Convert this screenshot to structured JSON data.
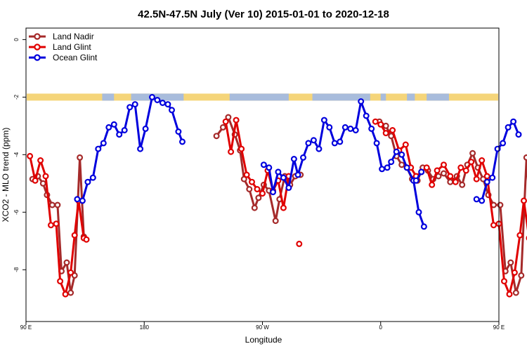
{
  "chart_data": {
    "type": "line",
    "title": "42.5N-47.5N July (Ver 10)   2015-01-01 to 2020-12-18",
    "xlabel": "Longitude",
    "ylabel": "XCO2 - MLO trend (ppm)",
    "x_axis": {
      "range": [
        90,
        450
      ],
      "ticks": [
        {
          "value": 90,
          "label": "90 E"
        },
        {
          "value": 180,
          "label": "180"
        },
        {
          "value": 270,
          "label": "90 W"
        },
        {
          "value": 360,
          "label": "0"
        },
        {
          "value": 450,
          "label": "90 E"
        },
        {
          "value": 540,
          "label": "180"
        }
      ]
    },
    "y_axis": {
      "range": [
        -9.8,
        0.4
      ],
      "ticks": [
        {
          "value": 0,
          "label": "0"
        },
        {
          "value": -2,
          "label": "-2"
        },
        {
          "value": -4,
          "label": "-4"
        },
        {
          "value": -6,
          "label": "-6"
        },
        {
          "value": -8,
          "label": "-8"
        }
      ]
    },
    "grid": false,
    "legend_position": "top-left",
    "land_mask_band": {
      "y_value": -2,
      "land_color": "#f5d57a",
      "ocean_color": "#a8bcdc"
    },
    "series": [
      {
        "name": "Land Nadir",
        "color": "#a52a2a",
        "segments": [
          [
            [
              95,
              -4.85
            ],
            [
              99,
              -4.75
            ],
            [
              103,
              -5.0
            ],
            [
              106,
              -5.4
            ],
            [
              110,
              -5.75
            ],
            [
              114,
              -5.75
            ],
            [
              117,
              -8.05
            ],
            [
              121,
              -7.75
            ],
            [
              124,
              -8.8
            ],
            [
              127,
              -8.2
            ],
            [
              131,
              -4.1
            ],
            [
              134,
              -6.85
            ]
          ],
          [
            [
              235,
              -3.35
            ],
            [
              240,
              -3.05
            ],
            [
              244,
              -2.7
            ],
            [
              249,
              -3.3
            ],
            [
              253,
              -3.85
            ],
            [
              256,
              -4.85
            ],
            [
              260,
              -5.2
            ],
            [
              264,
              -5.85
            ],
            [
              267,
              -5.5
            ],
            [
              271,
              -5.05
            ],
            [
              275,
              -5.25
            ],
            [
              280,
              -6.3
            ],
            [
              283,
              -5.55
            ],
            [
              287,
              -4.75
            ],
            [
              291,
              -5.05
            ],
            [
              295,
              -4.75
            ],
            [
              299,
              -4.7
            ]
          ],
          [
            [
              359,
              -2.85
            ],
            [
              364,
              -3.0
            ],
            [
              368,
              -3.35
            ],
            [
              372,
              -4.05
            ],
            [
              376,
              -4.35
            ],
            [
              380,
              -4.45
            ],
            [
              384,
              -4.85
            ],
            [
              388,
              -4.9
            ],
            [
              392,
              -4.45
            ],
            [
              396,
              -4.55
            ],
            [
              400,
              -4.85
            ],
            [
              404,
              -4.75
            ],
            [
              408,
              -4.65
            ],
            [
              413,
              -4.95
            ],
            [
              418,
              -4.75
            ],
            [
              422,
              -5.05
            ],
            [
              426,
              -4.35
            ],
            [
              430,
              -3.95
            ],
            [
              434,
              -4.45
            ],
            [
              438,
              -4.85
            ],
            [
              442,
              -5.4
            ],
            [
              446,
              -5.75
            ],
            [
              451,
              -5.75
            ],
            [
              455,
              -8.05
            ],
            [
              459,
              -7.75
            ],
            [
              463,
              -8.8
            ],
            [
              467,
              -8.2
            ],
            [
              471,
              -4.1
            ],
            [
              475,
              -6.85
            ]
          ]
        ]
      },
      {
        "name": "Land Glint",
        "color": "#e00000",
        "segments": [
          [
            [
              93,
              -4.05
            ],
            [
              97,
              -4.9
            ],
            [
              101,
              -4.2
            ],
            [
              105,
              -4.75
            ],
            [
              109,
              -6.45
            ],
            [
              113,
              -6.4
            ],
            [
              116,
              -8.4
            ],
            [
              120,
              -8.85
            ],
            [
              124,
              -8.1
            ],
            [
              127,
              -6.8
            ],
            [
              130,
              -5.6
            ],
            [
              134,
              -6.9
            ],
            [
              136,
              -6.95
            ]
          ],
          [
            [
              242,
              -2.85
            ],
            [
              246,
              -3.9
            ],
            [
              250,
              -2.8
            ],
            [
              254,
              -3.8
            ],
            [
              258,
              -4.7
            ],
            [
              262,
              -4.95
            ],
            [
              266,
              -5.2
            ],
            [
              270,
              -5.35
            ],
            [
              274,
              -4.55
            ],
            [
              278,
              -5.25
            ],
            [
              282,
              -4.9
            ],
            [
              286,
              -5.85
            ],
            [
              290,
              -4.75
            ]
          ],
          [
            [
              356,
              -2.85
            ],
            [
              360,
              -2.95
            ],
            [
              364,
              -3.25
            ],
            [
              369,
              -3.15
            ],
            [
              374,
              -3.85
            ],
            [
              379,
              -3.65
            ],
            [
              383,
              -4.45
            ],
            [
              387,
              -4.75
            ],
            [
              391,
              -4.6
            ],
            [
              395,
              -4.45
            ],
            [
              399,
              -5.05
            ],
            [
              403,
              -4.55
            ],
            [
              408,
              -4.35
            ],
            [
              413,
              -4.75
            ],
            [
              417,
              -4.95
            ],
            [
              421,
              -4.45
            ],
            [
              425,
              -4.55
            ],
            [
              429,
              -4.25
            ],
            [
              433,
              -4.85
            ],
            [
              437,
              -4.2
            ],
            [
              441,
              -4.75
            ],
            [
              446,
              -6.45
            ],
            [
              450,
              -6.4
            ],
            [
              454,
              -8.4
            ],
            [
              458,
              -8.85
            ],
            [
              462,
              -8.1
            ],
            [
              466,
              -6.8
            ],
            [
              469,
              -5.6
            ],
            [
              473,
              -6.9
            ],
            [
              476,
              -6.95
            ]
          ],
          [
            [
              298,
              -7.1
            ]
          ]
        ]
      },
      {
        "name": "Ocean Glint",
        "color": "#0000dd",
        "segments": [
          [
            [
              129,
              -5.55
            ],
            [
              133,
              -5.6
            ],
            [
              137,
              -4.95
            ],
            [
              141,
              -4.8
            ],
            [
              145,
              -3.8
            ],
            [
              149,
              -3.6
            ],
            [
              153,
              -3.05
            ],
            [
              157,
              -2.95
            ],
            [
              161,
              -3.3
            ],
            [
              165,
              -3.15
            ],
            [
              169,
              -2.35
            ],
            [
              173,
              -2.25
            ],
            [
              177,
              -3.8
            ],
            [
              181,
              -3.1
            ],
            [
              186,
              -2.0
            ],
            [
              190,
              -2.1
            ],
            [
              194,
              -2.2
            ],
            [
              198,
              -2.25
            ],
            [
              201,
              -2.45
            ],
            [
              206,
              -3.2
            ],
            [
              209,
              -3.55
            ]
          ],
          [
            [
              271,
              -4.35
            ],
            [
              275,
              -4.45
            ],
            [
              278,
              -5.3
            ],
            [
              282,
              -4.6
            ],
            [
              286,
              -4.8
            ],
            [
              290,
              -5.15
            ],
            [
              294,
              -4.15
            ],
            [
              297,
              -4.7
            ],
            [
              301,
              -4.1
            ],
            [
              305,
              -3.6
            ],
            [
              309,
              -3.5
            ],
            [
              313,
              -3.8
            ],
            [
              317,
              -2.8
            ],
            [
              321,
              -3.05
            ],
            [
              325,
              -3.6
            ],
            [
              329,
              -3.55
            ],
            [
              333,
              -3.05
            ],
            [
              337,
              -3.1
            ],
            [
              341,
              -3.15
            ],
            [
              345,
              -2.15
            ],
            [
              349,
              -2.65
            ],
            [
              353,
              -3.1
            ],
            [
              357,
              -3.6
            ],
            [
              361,
              -4.5
            ],
            [
              365,
              -4.45
            ],
            [
              368,
              -4.25
            ],
            [
              372,
              -3.9
            ],
            [
              376,
              -4.0
            ],
            [
              380,
              -4.45
            ],
            [
              385,
              -4.9
            ],
            [
              389,
              -6.0
            ],
            [
              393,
              -6.5
            ]
          ],
          [
            [
              387,
              -4.9
            ],
            [
              391,
              -4.6
            ]
          ],
          [
            [
              433,
              -5.55
            ],
            [
              437,
              -5.6
            ],
            [
              441,
              -4.95
            ],
            [
              445,
              -4.8
            ],
            [
              449,
              -3.8
            ],
            [
              453,
              -3.6
            ],
            [
              457,
              -3.05
            ],
            [
              461,
              -2.85
            ],
            [
              465,
              -3.3
            ]
          ]
        ]
      }
    ]
  }
}
